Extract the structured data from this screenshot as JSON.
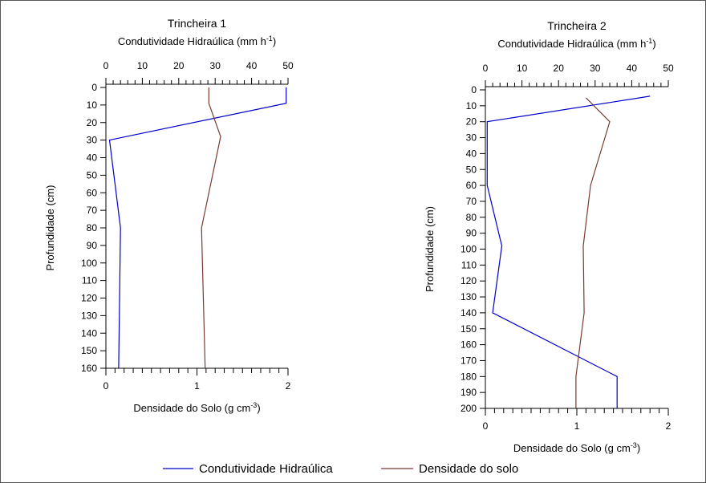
{
  "chart_data": [
    {
      "type": "line",
      "title": "Trincheira 1",
      "top_axis": {
        "label_prefix": "Condutividade Hidraúlica (mm h",
        "label_sup": "-1",
        "label_suffix": ")",
        "range": [
          0,
          50
        ],
        "ticks": [
          "0",
          "10",
          "20",
          "30",
          "40",
          "50"
        ]
      },
      "bottom_axis": {
        "label_prefix": "Densidade do Solo (g cm",
        "label_sup": "-3",
        "label_suffix": ")",
        "range": [
          0,
          2
        ],
        "ticks": [
          "0",
          "1",
          "2"
        ]
      },
      "y_axis": {
        "label": "Profundidade (cm)",
        "range": [
          0,
          160
        ],
        "inverted": true,
        "ticks": [
          "0",
          "10",
          "20",
          "30",
          "40",
          "50",
          "60",
          "70",
          "80",
          "90",
          "100",
          "110",
          "120",
          "130",
          "140",
          "150",
          "160"
        ]
      },
      "series": [
        {
          "name": "Condutividade Hidraúlica",
          "axis": "top",
          "color": "#0000cc",
          "points": [
            [
              49.5,
              0
            ],
            [
              49.5,
              9
            ],
            [
              1,
              30
            ],
            [
              4,
              80
            ],
            [
              3.5,
              160
            ]
          ]
        },
        {
          "name": "Densidade do solo",
          "axis": "bottom",
          "color": "#7a3b2e",
          "points": [
            [
              1.13,
              0
            ],
            [
              1.13,
              9
            ],
            [
              1.26,
              28
            ],
            [
              1.05,
              80
            ],
            [
              1.09,
              160
            ]
          ]
        }
      ]
    },
    {
      "type": "line",
      "title": "Trincheira 2",
      "top_axis": {
        "label_prefix": "Condutividade Hidraúlica (mm h",
        "label_sup": "-1",
        "label_suffix": ")",
        "range": [
          0,
          50
        ],
        "ticks": [
          "0",
          "10",
          "20",
          "30",
          "40",
          "50"
        ]
      },
      "bottom_axis": {
        "label_prefix": "Densidade do Solo (g cm",
        "label_sup": "-3",
        "label_suffix": ")",
        "range": [
          0,
          2
        ],
        "ticks": [
          "0",
          "1",
          "2"
        ]
      },
      "y_axis": {
        "label": "Profundidade (cm)",
        "range": [
          0,
          200
        ],
        "inverted": true,
        "ticks": [
          "0",
          "10",
          "20",
          "30",
          "40",
          "50",
          "60",
          "70",
          "80",
          "90",
          "100",
          "110",
          "120",
          "130",
          "140",
          "150",
          "160",
          "170",
          "180",
          "190",
          "200"
        ]
      },
      "series": [
        {
          "name": "Condutividade Hidraúlica",
          "axis": "top",
          "color": "#0000cc",
          "points": [
            [
              45,
              4
            ],
            [
              0.5,
              20
            ],
            [
              0.5,
              60
            ],
            [
              4.5,
              98
            ],
            [
              2,
              140
            ],
            [
              36,
              180
            ],
            [
              36,
              200
            ]
          ]
        },
        {
          "name": "Densidade do solo",
          "axis": "bottom",
          "color": "#7a3b2e",
          "points": [
            [
              1.1,
              5
            ],
            [
              1.36,
              20
            ],
            [
              1.15,
              60
            ],
            [
              1.07,
              98
            ],
            [
              1.08,
              140
            ],
            [
              0.99,
              180
            ],
            [
              0.99,
              200
            ]
          ]
        }
      ]
    }
  ],
  "legend": {
    "items": [
      {
        "label": "Condutividade Hidraúlica",
        "color": "#0000cc"
      },
      {
        "label": "Densidade do solo",
        "color": "#7a3b2e"
      }
    ]
  }
}
